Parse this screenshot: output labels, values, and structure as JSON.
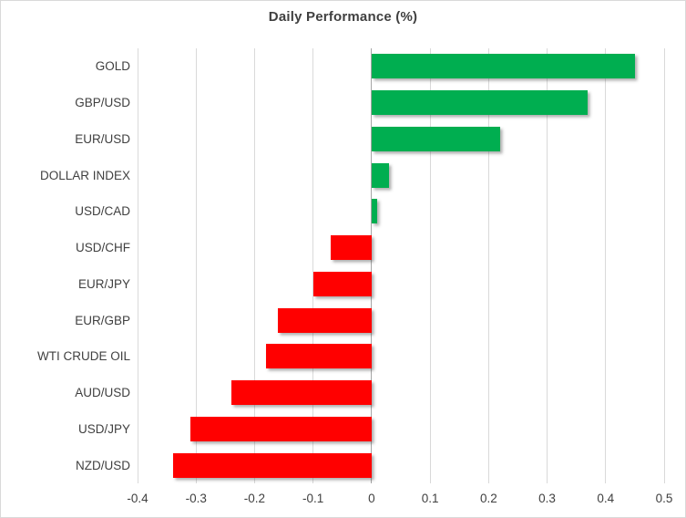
{
  "title": "Daily Performance (%)",
  "chart_data": {
    "type": "bar",
    "orientation": "horizontal",
    "title": "Daily Performance (%)",
    "categories": [
      "GOLD",
      "GBP/USD",
      "EUR/USD",
      "DOLLAR INDEX",
      "USD/CAD",
      "USD/CHF",
      "EUR/JPY",
      "EUR/GBP",
      "WTI CRUDE OIL",
      "AUD/USD",
      "USD/JPY",
      "NZD/USD"
    ],
    "values": [
      0.45,
      0.37,
      0.22,
      0.03,
      0.01,
      -0.07,
      -0.1,
      -0.16,
      -0.18,
      -0.24,
      -0.31,
      -0.34
    ],
    "xlim": [
      -0.4,
      0.5
    ],
    "xticks": [
      -0.4,
      -0.3,
      -0.2,
      -0.1,
      0,
      0.1,
      0.2,
      0.3,
      0.4,
      0.5
    ],
    "xtick_labels": [
      "-0.4",
      "-0.3",
      "-0.2",
      "-0.1",
      "0",
      "0.1",
      "0.2",
      "0.3",
      "0.4",
      "0.5"
    ],
    "grid": "vertical-only",
    "legend": "none",
    "colors": {
      "positive_bar": "#00ae50",
      "negative_bar": "#ff0000",
      "gridline": "#d9d9d9",
      "zero_axis_line": "#a6a6a6",
      "title_text": "#404040",
      "label_text": "#404040",
      "chart_border": "#d9d9d9",
      "background": "#ffffff"
    }
  }
}
